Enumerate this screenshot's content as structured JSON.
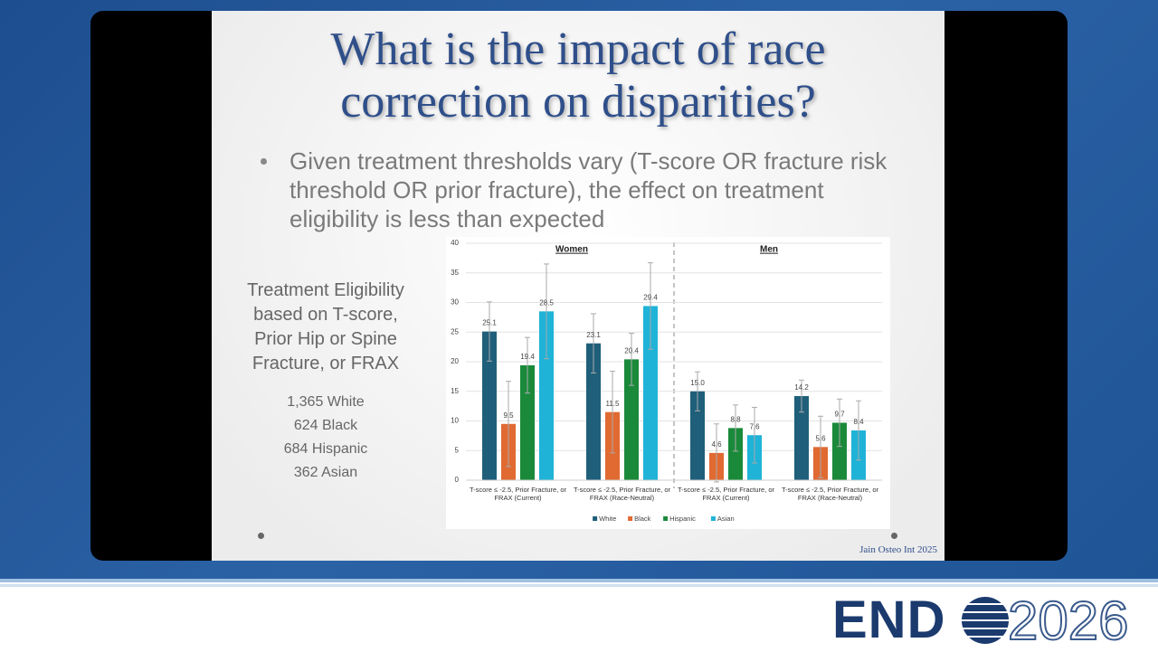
{
  "slide": {
    "title": "What is the impact of race correction on disparities?",
    "bullet": "Given treatment thresholds vary (T-score OR fracture risk threshold OR prior fracture), the effect on treatment eligibility is less than expected",
    "side_heading": "Treatment Eligibility based on T-score, Prior Hip or Spine Fracture, or FRAX",
    "counts": [
      "1,365 White",
      "624 Black",
      "684 Hispanic",
      "362 Asian"
    ],
    "citation": "Jain Osteo Int 2025"
  },
  "logo": {
    "left": "END",
    "right": "2026"
  },
  "chart_data": {
    "type": "bar",
    "annotations": [
      "Women",
      "Men"
    ],
    "categories": [
      "T-score ≤ -2.5, Prior Fracture, or FRAX (Current)",
      "T-score ≤ -2.5, Prior Fracture, or FRAX (Race-Neutral)",
      "T-score ≤ -2.5, Prior Fracture, or FRAX (Current)",
      "T-score ≤ -2.5, Prior Fracture, or FRAX (Race-Neutral)"
    ],
    "series": [
      {
        "name": "White",
        "color": "#1f5f7a",
        "values": [
          25.1,
          23.1,
          15.0,
          14.2
        ],
        "value_labels": [
          "25.1",
          "23.1",
          "15.0",
          "14.2"
        ],
        "errors": [
          5,
          5,
          3.3,
          2.7
        ]
      },
      {
        "name": "Black",
        "color": "#e06a32",
        "values": [
          9.5,
          11.5,
          4.6,
          5.6
        ],
        "value_labels": [
          "9.5",
          "11.5",
          "4.6",
          "5.6"
        ],
        "errors": [
          7.2,
          6.9,
          4.9,
          5.2
        ]
      },
      {
        "name": "Hispanic",
        "color": "#1a8a3a",
        "values": [
          19.4,
          20.4,
          8.8,
          9.7
        ],
        "value_labels": [
          "19.4",
          "20.4",
          "8.8",
          "9.7"
        ],
        "errors": [
          4.7,
          4.4,
          3.9,
          4
        ]
      },
      {
        "name": "Asian",
        "color": "#1fb3d8",
        "values": [
          28.5,
          29.4,
          7.6,
          8.4
        ],
        "value_labels": [
          "28.5",
          "29.4",
          "7.6",
          "8.4"
        ],
        "errors": [
          8,
          7.3,
          4.7,
          5
        ]
      }
    ],
    "ylim": [
      0,
      40
    ],
    "yticks": [
      0,
      5,
      10,
      15,
      20,
      25,
      30,
      35,
      40
    ],
    "grid": true,
    "legend": "bottom"
  }
}
